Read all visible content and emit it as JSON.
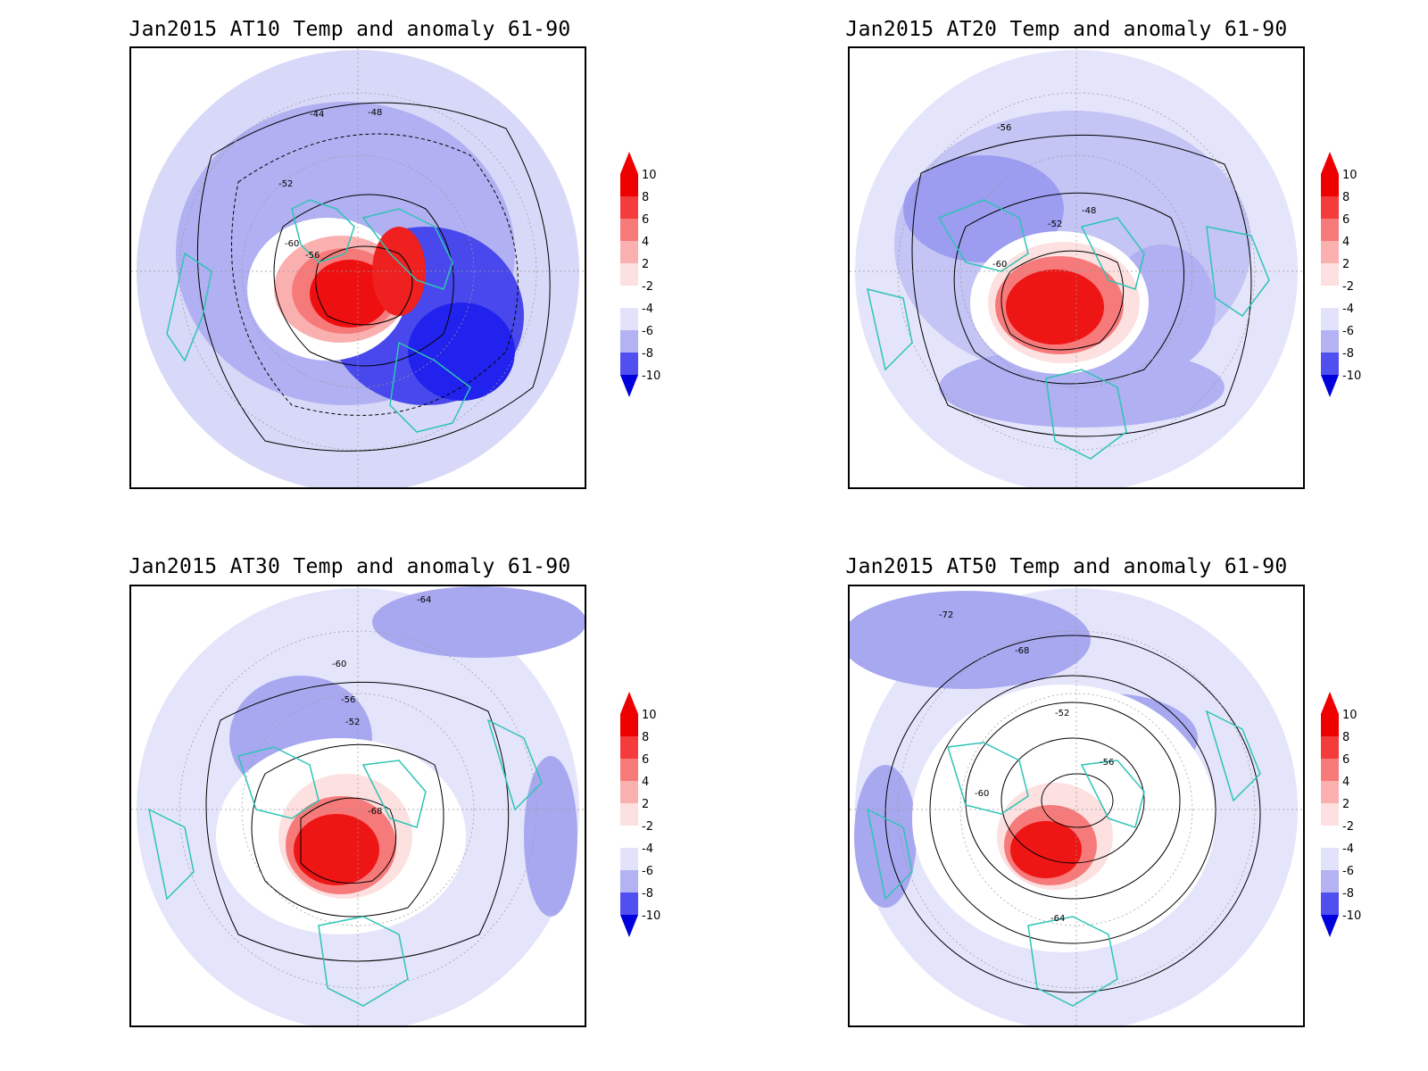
{
  "panels": [
    {
      "title": "Jan2015 AT10 Temp and anomaly 61-90",
      "contour_labels": [
        "-44",
        "-48",
        "-52",
        "-56",
        "-60"
      ],
      "anomaly_regions": [
        {
          "sign": "warm",
          "peak": 10
        },
        {
          "sign": "cold",
          "peak": -10
        }
      ]
    },
    {
      "title": "Jan2015 AT20 Temp and anomaly 61-90",
      "contour_labels": [
        "-48",
        "-52",
        "-56",
        "-60"
      ],
      "anomaly_regions": [
        {
          "sign": "warm",
          "peak": 10
        },
        {
          "sign": "cold",
          "peak": -6
        }
      ]
    },
    {
      "title": "Jan2015 AT30 Temp and anomaly 61-90",
      "contour_labels": [
        "-52",
        "-56",
        "-60",
        "-64",
        "-68"
      ],
      "anomaly_regions": [
        {
          "sign": "warm",
          "peak": 10
        },
        {
          "sign": "cold",
          "peak": -6
        }
      ]
    },
    {
      "title": "Jan2015 AT50 Temp and anomaly 61-90",
      "contour_labels": [
        "-52",
        "-56",
        "-60",
        "-64",
        "-68",
        "-72"
      ],
      "anomaly_regions": [
        {
          "sign": "warm",
          "peak": 10
        },
        {
          "sign": "cold",
          "peak": -6
        }
      ]
    }
  ],
  "colorbar": {
    "labels": [
      "10",
      "8",
      "6",
      "4",
      "2",
      "-2",
      "-4",
      "-6",
      "-8",
      "-10"
    ],
    "colors": [
      "#ee0000",
      "#f53c3c",
      "#f77a7a",
      "#fbb0b0",
      "#fde0e0",
      "#ffffff",
      "#e2e2fb",
      "#b3b3f3",
      "#8080f0",
      "#5050f0",
      "#2222ee",
      "#0000dd"
    ]
  },
  "map_colors": {
    "coast": "#2ec4b6",
    "contour": "#000000",
    "grid": "#999999"
  }
}
